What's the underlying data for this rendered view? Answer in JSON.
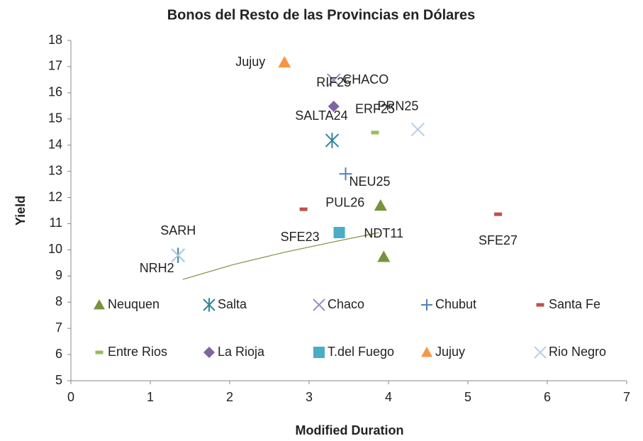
{
  "chart_data": {
    "type": "scatter",
    "title": "Bonos del Resto de las Provincias en Dólares",
    "xlabel": "Modified Duration",
    "ylabel": "Yield",
    "xlim": [
      0,
      7
    ],
    "xticks": [
      0,
      1,
      2,
      3,
      4,
      5,
      6,
      7
    ],
    "ylim": [
      5,
      18
    ],
    "yticks": [
      5,
      6,
      7,
      8,
      9,
      10,
      11,
      12,
      13,
      14,
      15,
      16,
      17,
      18
    ],
    "grid": false,
    "legend": "inside",
    "series": [
      {
        "name": "Neuquen",
        "color": "#77933c",
        "marker": "triangle",
        "x": [
          3.9,
          3.94
        ],
        "values": [
          11.69,
          9.73
        ],
        "labels": [
          "PUL26",
          "NDT11"
        ]
      },
      {
        "name": "Salta",
        "color": "#31859c",
        "marker": "asterisk",
        "x": [
          1.35,
          3.29
        ],
        "values": [
          9.79,
          14.18
        ],
        "labels": [
          "SARH",
          "SALTA24"
        ]
      },
      {
        "name": "Chaco",
        "color": "#9d8fc4",
        "marker": "x",
        "x": [
          3.31
        ],
        "values": [
          16.48
        ],
        "labels": [
          "CHACO"
        ]
      },
      {
        "name": "Chubut",
        "color": "#4f81bd",
        "marker": "plus",
        "x": [
          3.46
        ],
        "values": [
          12.9
        ],
        "labels": [
          "NEU25"
        ]
      },
      {
        "name": "Santa Fe",
        "color": "#c0504d",
        "marker": "dash",
        "x": [
          2.93,
          5.38
        ],
        "values": [
          11.55,
          11.36
        ],
        "labels": [
          "SFE23",
          "SFE27"
        ]
      },
      {
        "name": "Entre Rios",
        "color": "#9bbb59",
        "marker": "dash",
        "x": [
          3.83
        ],
        "values": [
          14.48
        ],
        "labels": [
          "ERF25"
        ]
      },
      {
        "name": "La Rioja",
        "color": "#8064a2",
        "marker": "diamond",
        "x": [
          3.31
        ],
        "values": [
          15.48
        ],
        "labels": [
          "RIF25"
        ]
      },
      {
        "name": "T.del Fuego",
        "color": "#4bacc6",
        "marker": "square",
        "x": [
          3.38
        ],
        "values": [
          10.66
        ]
      },
      {
        "name": "Jujuy",
        "color": "#f79646",
        "marker": "triangle",
        "x": [
          2.69
        ],
        "values": [
          17.16
        ],
        "labels": [
          "Jujuy"
        ]
      },
      {
        "name": "Rio Negro",
        "color": "#b9cde5",
        "marker": "x",
        "x": [
          1.35,
          4.37
        ],
        "values": [
          9.79,
          14.6
        ],
        "labels": [
          "NRH2",
          "PRN25"
        ]
      }
    ],
    "trendline": {
      "color": "#77933c",
      "x": [
        1.41,
        2.05,
        2.68,
        3.3,
        3.88
      ],
      "values": [
        8.87,
        9.44,
        9.9,
        10.3,
        10.66
      ]
    }
  }
}
